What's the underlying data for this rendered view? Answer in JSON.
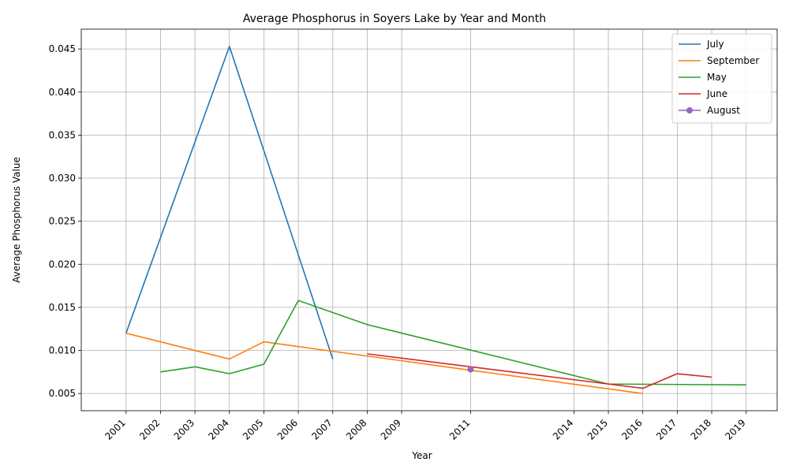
{
  "chart_data": {
    "type": "line",
    "title": "Average Phosphorus in Soyers Lake by Year and Month",
    "xlabel": "Year",
    "ylabel": "Average Phosphorus Value",
    "xlim": [
      1999.7,
      2019.9
    ],
    "ylim": [
      0.003,
      0.0473
    ],
    "x_ticks": [
      "2001",
      "2002",
      "2003",
      "2004",
      "2005",
      "2006",
      "2007",
      "2008",
      "2009",
      "2011",
      "2014",
      "2015",
      "2016",
      "2017",
      "2018",
      "2019"
    ],
    "y_ticks": [
      "0.005",
      "0.010",
      "0.015",
      "0.020",
      "0.025",
      "0.030",
      "0.035",
      "0.040",
      "0.045"
    ],
    "grid": true,
    "legend_position": "top-right",
    "series": [
      {
        "name": "July",
        "color": "#1f77b4",
        "marker": false,
        "points": [
          [
            2001,
            0.012
          ],
          [
            2004,
            0.0453
          ],
          [
            2007,
            0.009
          ]
        ]
      },
      {
        "name": "September",
        "color": "#ff7f0e",
        "marker": false,
        "points": [
          [
            2001,
            0.012
          ],
          [
            2004,
            0.009
          ],
          [
            2005,
            0.011
          ],
          [
            2011,
            0.0077
          ],
          [
            2016,
            0.005
          ]
        ]
      },
      {
        "name": "May",
        "color": "#2ca02c",
        "marker": false,
        "points": [
          [
            2002,
            0.0075
          ],
          [
            2003,
            0.0081
          ],
          [
            2004,
            0.0073
          ],
          [
            2005,
            0.0084
          ],
          [
            2006,
            0.0158
          ],
          [
            2008,
            0.013
          ],
          [
            2015,
            0.0061
          ],
          [
            2019,
            0.006
          ]
        ]
      },
      {
        "name": "June",
        "color": "#d62728",
        "marker": false,
        "points": [
          [
            2008,
            0.0096
          ],
          [
            2016,
            0.0056
          ],
          [
            2017,
            0.0073
          ],
          [
            2018,
            0.0069
          ]
        ]
      },
      {
        "name": "August",
        "color": "#9467bd",
        "marker": true,
        "points": [
          [
            2011,
            0.0078
          ]
        ]
      }
    ]
  }
}
